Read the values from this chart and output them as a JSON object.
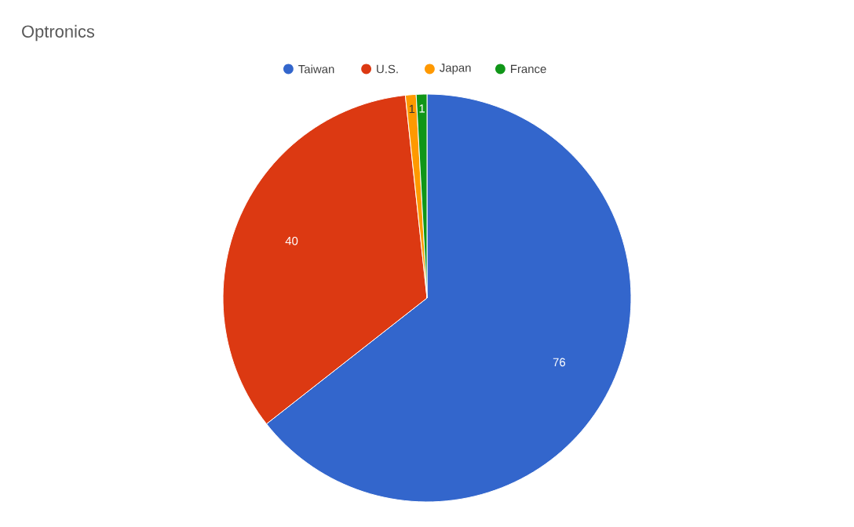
{
  "chart_data": {
    "type": "pie",
    "title": "Optronics",
    "categories": [
      "Taiwan",
      "U.S.",
      "Japan",
      "France"
    ],
    "values": [
      76,
      40,
      1,
      1
    ],
    "colors": [
      "#3366cc",
      "#dc3912",
      "#ff9900",
      "#109618"
    ],
    "data_labels": true,
    "legend": "top"
  }
}
